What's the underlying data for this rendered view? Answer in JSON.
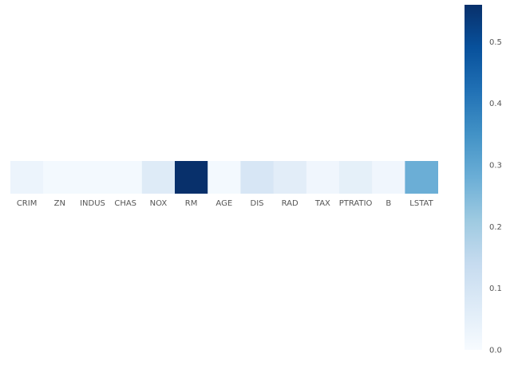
{
  "chart_data": {
    "type": "heatmap",
    "title": "",
    "xlabel": "",
    "ylabel": "",
    "x": [
      "CRIM",
      "ZN",
      "INDUS",
      "CHAS",
      "NOX",
      "RM",
      "AGE",
      "DIS",
      "RAD",
      "TAX",
      "PTRATIO",
      "B",
      "LSTAT"
    ],
    "values": [
      0.03,
      0.01,
      0.01,
      0.01,
      0.07,
      0.56,
      0.01,
      0.09,
      0.06,
      0.02,
      0.05,
      0.02,
      0.28
    ],
    "colorbar": {
      "range": [
        0,
        0.56
      ],
      "ticks": [
        "0.0",
        "0.1",
        "0.2",
        "0.3",
        "0.4",
        "0.5"
      ],
      "colormap": "Blues",
      "colors": [
        "#f7fbff",
        "#deebf7",
        "#c6dbef",
        "#9ecae1",
        "#6baed6",
        "#4292c6",
        "#2171b5",
        "#08519c",
        "#08306b"
      ]
    },
    "grid": false
  }
}
